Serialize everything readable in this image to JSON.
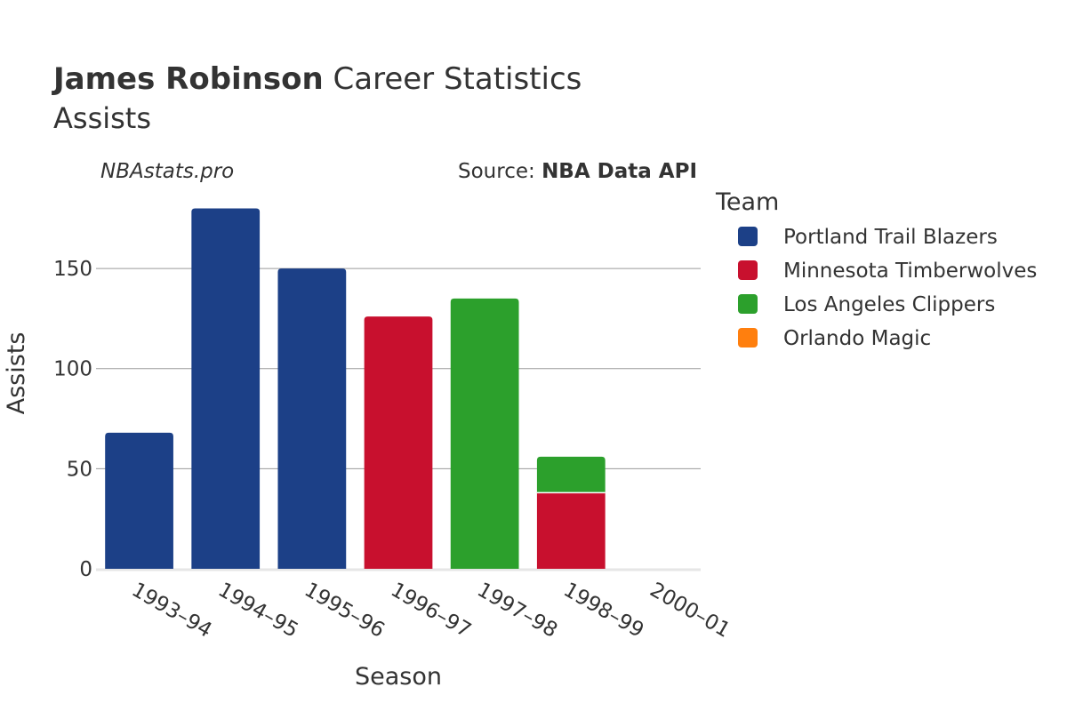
{
  "header": {
    "player_name": "James Robinson",
    "title_rest": " Career Statistics",
    "subtitle": "Assists"
  },
  "watermark": "NBAstats.pro",
  "source": {
    "prefix": "Source: ",
    "name": "NBA Data API"
  },
  "legend": {
    "title": "Team",
    "items": [
      {
        "label": "Portland Trail Blazers",
        "color": "#1c4087"
      },
      {
        "label": "Minnesota Timberwolves",
        "color": "#c8102e"
      },
      {
        "label": "Los Angeles Clippers",
        "color": "#2ca02c"
      },
      {
        "label": "Orlando Magic",
        "color": "#ff7f0e"
      }
    ]
  },
  "chart_data": {
    "type": "bar",
    "stacked": true,
    "title": "James Robinson Career Statistics",
    "subtitle": "Assists",
    "xlabel": "Season",
    "ylabel": "Assists",
    "ylim": [
      0,
      190
    ],
    "yticks": [
      0,
      50,
      100,
      150
    ],
    "categories": [
      "1993–94",
      "1994–95",
      "1995–96",
      "1996–97",
      "1997–98",
      "1998–99",
      "2000–01"
    ],
    "series": [
      {
        "name": "Portland Trail Blazers",
        "color": "#1c4087",
        "values": [
          68,
          180,
          150,
          0,
          0,
          0,
          0
        ]
      },
      {
        "name": "Minnesota Timberwolves",
        "color": "#c8102e",
        "values": [
          0,
          0,
          0,
          126,
          0,
          38,
          0
        ]
      },
      {
        "name": "Los Angeles Clippers",
        "color": "#2ca02c",
        "values": [
          0,
          0,
          0,
          0,
          135,
          18,
          0
        ]
      },
      {
        "name": "Orlando Magic",
        "color": "#ff7f0e",
        "values": [
          0,
          0,
          0,
          0,
          0,
          0,
          0
        ]
      }
    ]
  }
}
